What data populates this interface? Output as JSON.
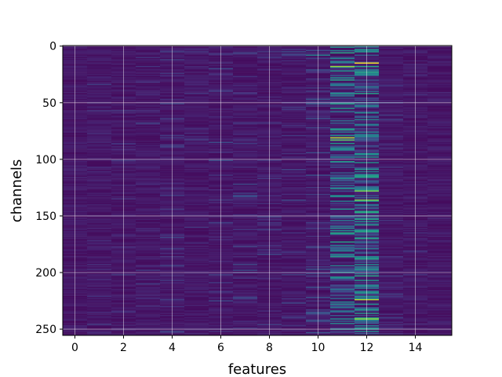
{
  "chart_data": {
    "type": "heatmap",
    "title": "",
    "xlabel": "features",
    "ylabel": "channels",
    "x_ticks": [
      0,
      2,
      4,
      6,
      8,
      10,
      12,
      14
    ],
    "y_ticks": [
      0,
      50,
      100,
      150,
      200,
      250
    ],
    "xlim": [
      -0.5,
      15.5
    ],
    "ylim": [
      255.5,
      -0.5
    ],
    "n_features": 16,
    "n_channels": 256,
    "colormap": "viridis",
    "grid": true,
    "colorbar": false,
    "column_activity": [
      0.05,
      0.1,
      0.1,
      0.12,
      0.14,
      0.12,
      0.16,
      0.18,
      0.14,
      0.16,
      0.22,
      0.55,
      0.6,
      0.15,
      0.08,
      0.04
    ],
    "highlights": [
      {
        "feature": 12,
        "channel": 15,
        "value": 1.0
      },
      {
        "feature": 11,
        "channel": 18,
        "value": 0.85
      },
      {
        "feature": 11,
        "channel": 81,
        "value": 0.9
      },
      {
        "feature": 11,
        "channel": 83,
        "value": 0.75
      },
      {
        "feature": 12,
        "channel": 128,
        "value": 0.8
      },
      {
        "feature": 12,
        "channel": 136,
        "value": 0.8
      },
      {
        "feature": 12,
        "channel": 224,
        "value": 0.9
      },
      {
        "feature": 12,
        "channel": 241,
        "value": 0.85
      },
      {
        "feature": 11,
        "channel": 6,
        "value": 0.6
      },
      {
        "feature": 11,
        "channel": 30,
        "value": 0.6
      },
      {
        "feature": 11,
        "channel": 55,
        "value": 0.55
      },
      {
        "feature": 11,
        "channel": 165,
        "value": 0.6
      },
      {
        "feature": 12,
        "channel": 170,
        "value": 0.6
      },
      {
        "feature": 12,
        "channel": 203,
        "value": 0.6
      },
      {
        "feature": 10,
        "channel": 8,
        "value": 0.45
      }
    ]
  }
}
